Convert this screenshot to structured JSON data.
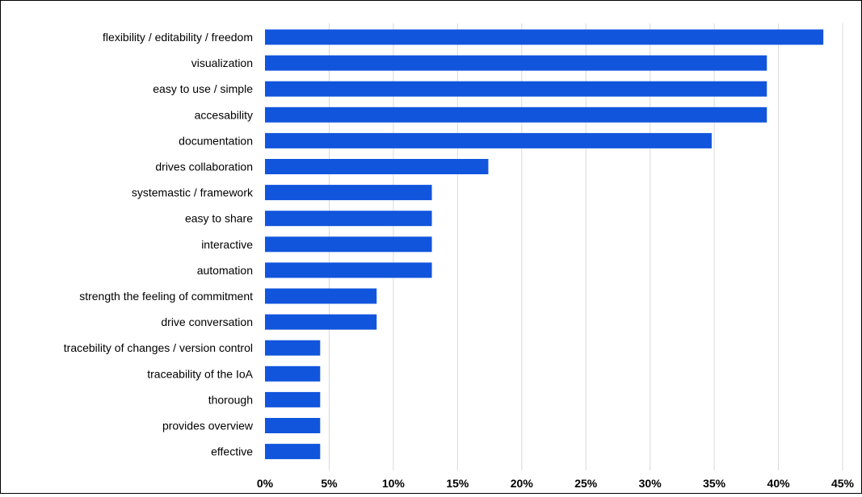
{
  "chart_data": {
    "type": "bar",
    "orientation": "horizontal",
    "categories": [
      "flexibility / editability / freedom",
      "visualization",
      "easy to use / simple",
      "accesability",
      "documentation",
      "drives collaboration",
      "systemastic / framework",
      "easy to share",
      "interactive",
      "automation",
      "strength the feeling of commitment",
      "drive conversation",
      "tracebility of changes / version control",
      "traceability of the IoA",
      "thorough",
      "provides overview",
      "effective"
    ],
    "values": [
      43.5,
      39.1,
      39.1,
      39.1,
      34.8,
      17.4,
      13.0,
      13.0,
      13.0,
      13.0,
      8.7,
      8.7,
      4.3,
      4.3,
      4.3,
      4.3,
      4.3
    ],
    "xlim": [
      0,
      45
    ],
    "xticks": [
      0,
      5,
      10,
      15,
      20,
      25,
      30,
      35,
      40,
      45
    ],
    "xtick_labels": [
      "0%",
      "5%",
      "10%",
      "15%",
      "20%",
      "25%",
      "30%",
      "35%",
      "40%",
      "45%"
    ],
    "title": "",
    "xlabel": "",
    "ylabel": "",
    "grid": "vertical",
    "legend": "none",
    "bar_color": "#1155dd",
    "grid_color": "#d9d9d9"
  }
}
